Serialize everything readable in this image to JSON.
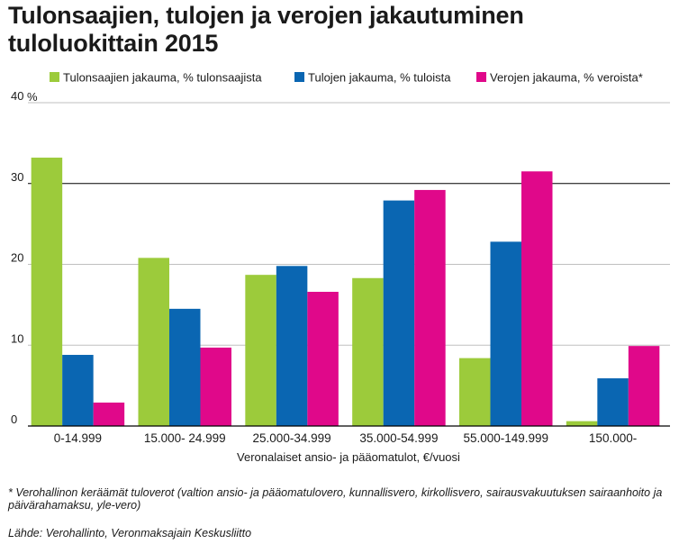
{
  "title": "Tulonsaajien, tulojen ja verojen jakautuminen tuloluokittain 2015",
  "footnote": "* Verohallinon keräämät tuloverot (valtion ansio- ja pääomatulovero, kunnallisvero, kirkollisvero, sairausvakuutuksen sairaanhoito ja päivärahamaksu, yle-vero)",
  "source": "Lähde: Verohallinto, Veronmaksajain Keskusliitto",
  "colors": {
    "series1": "#9ccb3b",
    "series2": "#0a66b2",
    "series3": "#e0088a",
    "axis": "#000000",
    "grid": "#bfbfbf"
  },
  "chart_data": {
    "type": "bar",
    "title": "Tulonsaajien, tulojen ja verojen jakautuminen tuloluokittain 2015",
    "xlabel": "Veronalaiset ansio- ja pääomatulot, €/vuosi",
    "ylabel": "%",
    "ylim": [
      0,
      40
    ],
    "yticks": [
      0,
      10,
      20,
      30,
      40
    ],
    "grid": true,
    "legend_position": "top",
    "categories": [
      "0-14.999",
      "15.000- 24.999",
      "25.000-34.999",
      "35.000-54.999",
      "55.000-149.999",
      "150.000-"
    ],
    "series": [
      {
        "name": "Tulonsaajien jakauma, % tulonsaajista",
        "values": [
          33.2,
          20.8,
          18.7,
          18.3,
          8.4,
          0.6
        ]
      },
      {
        "name": "Tulojen jakauma, % tuloista",
        "values": [
          8.8,
          14.5,
          19.8,
          27.9,
          22.8,
          5.9
        ]
      },
      {
        "name": "Verojen jakauma, % veroista*",
        "values": [
          2.9,
          9.7,
          16.6,
          29.2,
          31.5,
          9.9
        ]
      }
    ]
  }
}
